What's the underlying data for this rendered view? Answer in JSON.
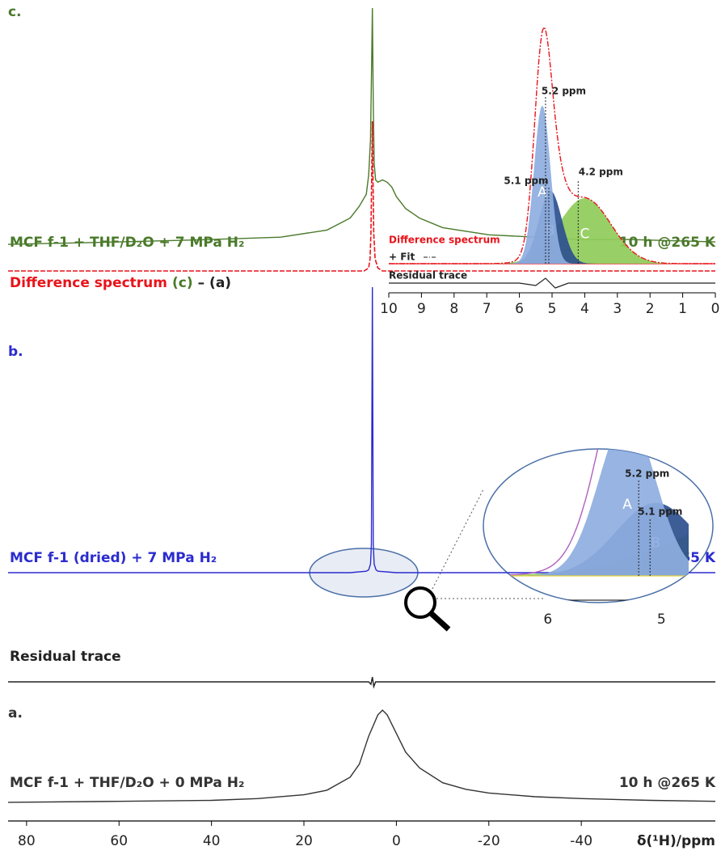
{
  "chart_data": {
    "type": "nmr-stack",
    "xlabel": "δ(¹H)/ppm",
    "xlim": [
      84,
      -69
    ],
    "xticks": [
      80,
      60,
      40,
      20,
      0,
      -20,
      -40
    ],
    "series": [
      {
        "panel": "c.",
        "name": "MCF f-1 + THF/D₂O + 7 MPa H₂",
        "condition": "10 h @265 K",
        "color": "#4a7a2a",
        "x": [
          84,
          60,
          40,
          25,
          15,
          10,
          8,
          6.5,
          6,
          5.6,
          5.4,
          5.2,
          5.0,
          4.8,
          4.5,
          4,
          3,
          2,
          1,
          0,
          -2,
          -5,
          -10,
          -20,
          -30,
          -40,
          -50,
          -69
        ],
        "values": [
          1,
          2,
          3,
          4,
          7,
          12,
          17,
          22,
          30,
          45,
          70,
          100,
          60,
          35,
          28,
          27,
          28,
          27,
          25,
          21,
          16,
          12,
          8,
          5,
          4,
          3,
          3,
          2
        ]
      },
      {
        "label_parts": [
          {
            "text": "Difference spectrum",
            "color": "#e8141b"
          },
          {
            "text": "(c)",
            "color": "#4a7a2a"
          },
          {
            "text": "– (a)",
            "color": "#222222"
          }
        ],
        "color": "#e8141b",
        "x": [
          84,
          10,
          7,
          6,
          5.7,
          5.5,
          5.35,
          5.2,
          5.05,
          4.9,
          4.6,
          4,
          3,
          -69
        ],
        "values": [
          0,
          0,
          0,
          2,
          8,
          25,
          60,
          100,
          60,
          25,
          8,
          2,
          0,
          0
        ]
      },
      {
        "panel": "b.",
        "name": "MCF f-1 (dried) + 7 MPa H₂",
        "condition": "265 K",
        "color": "#2b2bd0",
        "x": [
          84,
          10,
          6.5,
          6,
          5.6,
          5.4,
          5.2,
          5.0,
          4.8,
          4.4,
          4,
          0,
          -69
        ],
        "values": [
          0,
          0,
          0.5,
          1,
          3,
          10,
          100,
          10,
          3,
          1,
          0.5,
          0,
          0
        ]
      },
      {
        "name": "Residual trace",
        "color": "#222222",
        "x": [
          84,
          10,
          6,
          5.5,
          5.2,
          4.9,
          4.5,
          0,
          -69
        ],
        "values": [
          0,
          0,
          0,
          -1,
          2,
          -2,
          0,
          0,
          0
        ]
      },
      {
        "panel": "a.",
        "name": "MCF f-1 + THF/D₂O + 0 MPa H₂",
        "condition": "10 h @265 K",
        "color": "#333333",
        "x": [
          84,
          60,
          40,
          30,
          20,
          15,
          10,
          8,
          6,
          4,
          3,
          2,
          0,
          -2,
          -5,
          -10,
          -15,
          -20,
          -30,
          -40,
          -55,
          -69
        ],
        "values": [
          1,
          2,
          3,
          5,
          9,
          14,
          28,
          42,
          72,
          95,
          100,
          95,
          75,
          55,
          38,
          22,
          15,
          11,
          7,
          5,
          3,
          2
        ]
      }
    ],
    "insets": [
      {
        "xlim": [
          10,
          0
        ],
        "xticks": [
          10,
          9,
          8,
          7,
          6,
          5,
          4,
          3,
          2,
          1,
          0
        ],
        "difference_label": "Difference spectrum",
        "fit_label": "+ Fit",
        "residual_label": "Residual trace",
        "fit_color": "#e8141b",
        "components": [
          {
            "name": "A",
            "color": "#8eaee0",
            "center": 5.3,
            "height": 63,
            "width": 0.25
          },
          {
            "name": "B",
            "color": "#2d4f8e",
            "center": 5.05,
            "height": 29,
            "width": 0.35
          },
          {
            "name": "C",
            "color": "#8fcc5a",
            "center": 4.0,
            "height": 26,
            "width": 0.8
          }
        ],
        "annotations": [
          {
            "text": "5.2 ppm",
            "x": 5.2
          },
          {
            "text": "5.1 ppm",
            "x": 5.1
          },
          {
            "text": "4.2 ppm",
            "x": 4.2
          }
        ]
      },
      {
        "xlim": [
          6.34,
          4.76
        ],
        "xticks": [
          6,
          5
        ],
        "annotations": [
          {
            "text": "5.2 ppm",
            "x": 5.2
          },
          {
            "text": "5.1 ppm",
            "x": 5.1
          }
        ]
      }
    ]
  }
}
